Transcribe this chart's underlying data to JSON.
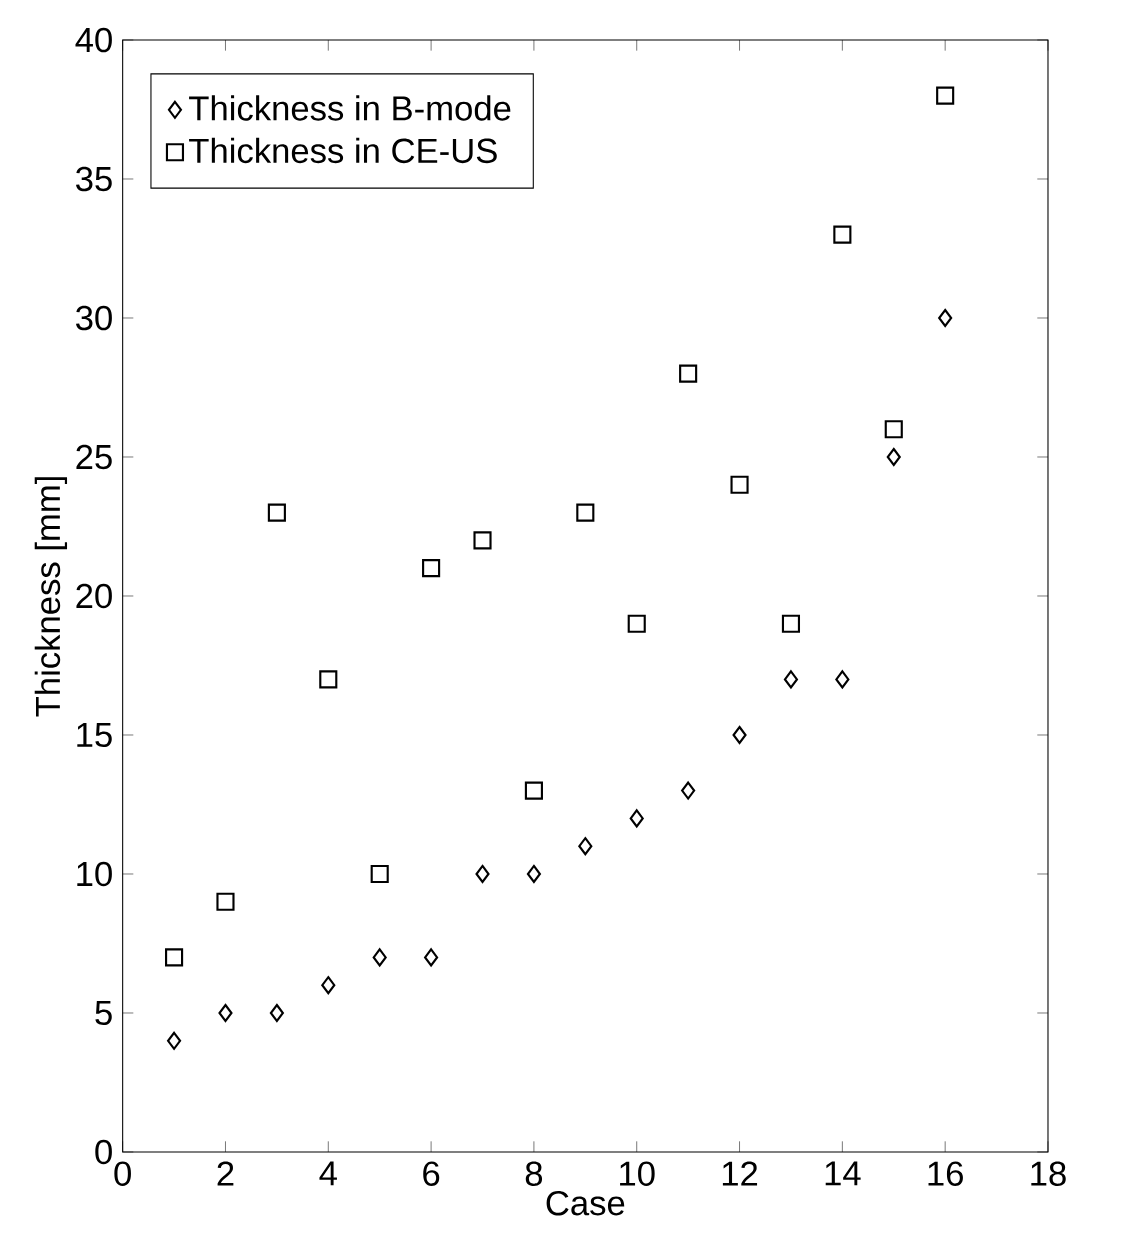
{
  "chart_data": {
    "type": "scatter",
    "xlabel": "Case",
    "ylabel": "Thickness [mm]",
    "x": [
      1,
      2,
      3,
      4,
      5,
      6,
      7,
      8,
      9,
      10,
      11,
      12,
      13,
      14,
      15,
      16
    ],
    "series": [
      {
        "name": "Thickness in B-mode",
        "color": "#000000",
        "marker": "diamond",
        "values": [
          4,
          5,
          5,
          6,
          7,
          7,
          10,
          10,
          11,
          12,
          13,
          15,
          17,
          17,
          25,
          30
        ]
      },
      {
        "name": "Thickness in CE-US",
        "color": "#000000",
        "marker": "square",
        "values": [
          7,
          9,
          23,
          17,
          10,
          21,
          22,
          13,
          23,
          19,
          28,
          24,
          19,
          33,
          26,
          38
        ]
      }
    ],
    "xlim": [
      0,
      18
    ],
    "xticks": [
      0,
      2,
      4,
      6,
      8,
      10,
      12,
      14,
      16,
      18
    ],
    "ylim": [
      0,
      40
    ],
    "yticks": [
      0,
      5,
      10,
      15,
      20,
      25,
      30,
      35,
      40
    ],
    "grid": false,
    "legend": "top left"
  }
}
